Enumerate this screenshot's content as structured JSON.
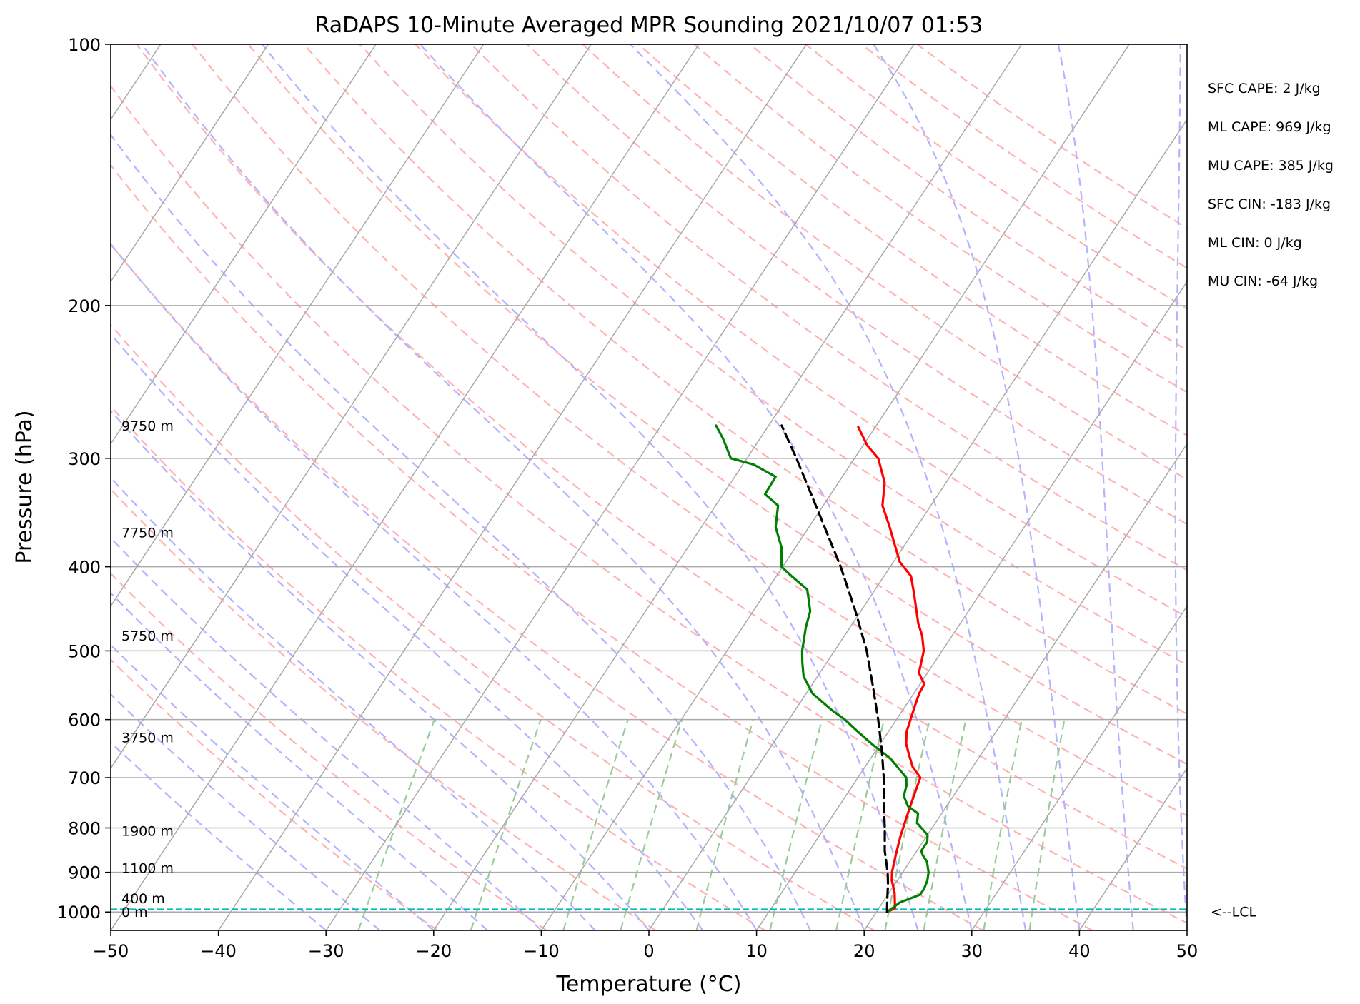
{
  "chart_data": {
    "type": "skew-t",
    "title": "RaDAPS 10-Minute Averaged MPR Sounding 2021/10/07 01:53",
    "xlabel": "Temperature (°C)",
    "ylabel": "Pressure (hPa)",
    "xlim": [
      -50,
      50
    ],
    "ylim": [
      1050,
      100
    ],
    "y_scale": "log",
    "x_ticks": [
      -50,
      -40,
      -30,
      -20,
      -10,
      0,
      10,
      20,
      30,
      40,
      50
    ],
    "x_tick_labels": [
      "−50",
      "−40",
      "−30",
      "−20",
      "−10",
      "0",
      "10",
      "20",
      "30",
      "40",
      "50"
    ],
    "y_ticks": [
      1000,
      900,
      800,
      700,
      600,
      500,
      400,
      300,
      200,
      100
    ],
    "y_tick_labels": [
      "1000",
      "900",
      "800",
      "700",
      "600",
      "500",
      "400",
      "300",
      "200",
      "100"
    ],
    "grid": true,
    "series": [
      {
        "role": "temperature",
        "color": "#ff0000",
        "points": [
          [
            1000,
            21.0
          ],
          [
            990,
            21.5
          ],
          [
            950,
            20.5
          ],
          [
            920,
            19.5
          ],
          [
            900,
            19.0
          ],
          [
            860,
            18.3
          ],
          [
            820,
            17.6
          ],
          [
            780,
            17.0
          ],
          [
            740,
            16.4
          ],
          [
            700,
            15.8
          ],
          [
            680,
            14.4
          ],
          [
            660,
            13.4
          ],
          [
            640,
            12.4
          ],
          [
            620,
            11.7
          ],
          [
            600,
            11.3
          ],
          [
            580,
            10.9
          ],
          [
            560,
            10.5
          ],
          [
            546,
            10.4
          ],
          [
            530,
            9.2
          ],
          [
            500,
            8.3
          ],
          [
            480,
            7.2
          ],
          [
            465,
            6.1
          ],
          [
            430,
            3.9
          ],
          [
            410,
            2.5
          ],
          [
            395,
            0.6
          ],
          [
            380,
            -0.7
          ],
          [
            360,
            -2.5
          ],
          [
            340,
            -4.5
          ],
          [
            320,
            -5.7
          ],
          [
            300,
            -7.8
          ],
          [
            290,
            -9.6
          ],
          [
            276,
            -11.6
          ]
        ]
      },
      {
        "role": "dewpoint",
        "color": "#008000",
        "points": [
          [
            1000,
            21.0
          ],
          [
            975,
            21.6
          ],
          [
            955,
            23.0
          ],
          [
            940,
            23.0
          ],
          [
            920,
            22.8
          ],
          [
            900,
            22.4
          ],
          [
            875,
            21.6
          ],
          [
            860,
            20.8
          ],
          [
            850,
            20.4
          ],
          [
            830,
            20.4
          ],
          [
            815,
            20.0
          ],
          [
            800,
            19.0
          ],
          [
            790,
            18.3
          ],
          [
            770,
            17.8
          ],
          [
            755,
            16.4
          ],
          [
            735,
            15.4
          ],
          [
            715,
            15.0
          ],
          [
            700,
            14.5
          ],
          [
            665,
            11.8
          ],
          [
            640,
            9.2
          ],
          [
            620,
            7.2
          ],
          [
            600,
            5.2
          ],
          [
            585,
            3.4
          ],
          [
            560,
            0.6
          ],
          [
            535,
            -1.3
          ],
          [
            515,
            -2.3
          ],
          [
            500,
            -3.0
          ],
          [
            470,
            -4.1
          ],
          [
            450,
            -4.7
          ],
          [
            425,
            -6.3
          ],
          [
            410,
            -8.6
          ],
          [
            400,
            -10.1
          ],
          [
            380,
            -11.3
          ],
          [
            360,
            -13.1
          ],
          [
            340,
            -14.2
          ],
          [
            330,
            -16.1
          ],
          [
            315,
            -16.2
          ],
          [
            305,
            -19.0
          ],
          [
            300,
            -21.5
          ],
          [
            285,
            -23.4
          ],
          [
            275,
            -24.9
          ]
        ]
      },
      {
        "role": "parcel",
        "color": "#000000",
        "style": "dashed",
        "points": [
          [
            1000,
            21.0
          ],
          [
            970,
            20.3
          ],
          [
            930,
            19.4
          ],
          [
            900,
            18.6
          ],
          [
            850,
            17.0
          ],
          [
            800,
            15.6
          ],
          [
            750,
            14.0
          ],
          [
            700,
            12.4
          ],
          [
            650,
            10.5
          ],
          [
            600,
            8.3
          ],
          [
            550,
            5.8
          ],
          [
            500,
            3.0
          ],
          [
            450,
            -0.5
          ],
          [
            400,
            -4.6
          ],
          [
            350,
            -9.6
          ],
          [
            300,
            -15.4
          ],
          [
            275,
            -18.8
          ]
        ]
      }
    ],
    "height_labels": [
      {
        "p": 1000,
        "label": "0 m"
      },
      {
        "p": 964,
        "label": "400 m"
      },
      {
        "p": 890,
        "label": "1100 m"
      },
      {
        "p": 806,
        "label": "1900 m"
      },
      {
        "p": 629,
        "label": "3750 m"
      },
      {
        "p": 480,
        "label": "5750 m"
      },
      {
        "p": 365,
        "label": "7750 m"
      },
      {
        "p": 275,
        "label": "9750 m"
      }
    ],
    "lcl": {
      "p": 993,
      "label": "<--LCL",
      "color": "#00bcbc"
    },
    "indices": [
      "SFC CAPE: 2 J/kg",
      "ML CAPE: 969 J/kg",
      "MU CAPE: 385 J/kg",
      "SFC CIN: -183 J/kg",
      "ML CIN: 0 J/kg",
      "MU CIN: -64 J/kg"
    ],
    "background_lines": {
      "isotherm_color": "#a9a9a9",
      "isobar_color": "#a9a9a9",
      "dry_adiabat_color": "#ffb3b3",
      "moist_adiabat_color": "#b3b3ff",
      "mixing_ratio_color": "#99cc99"
    }
  }
}
